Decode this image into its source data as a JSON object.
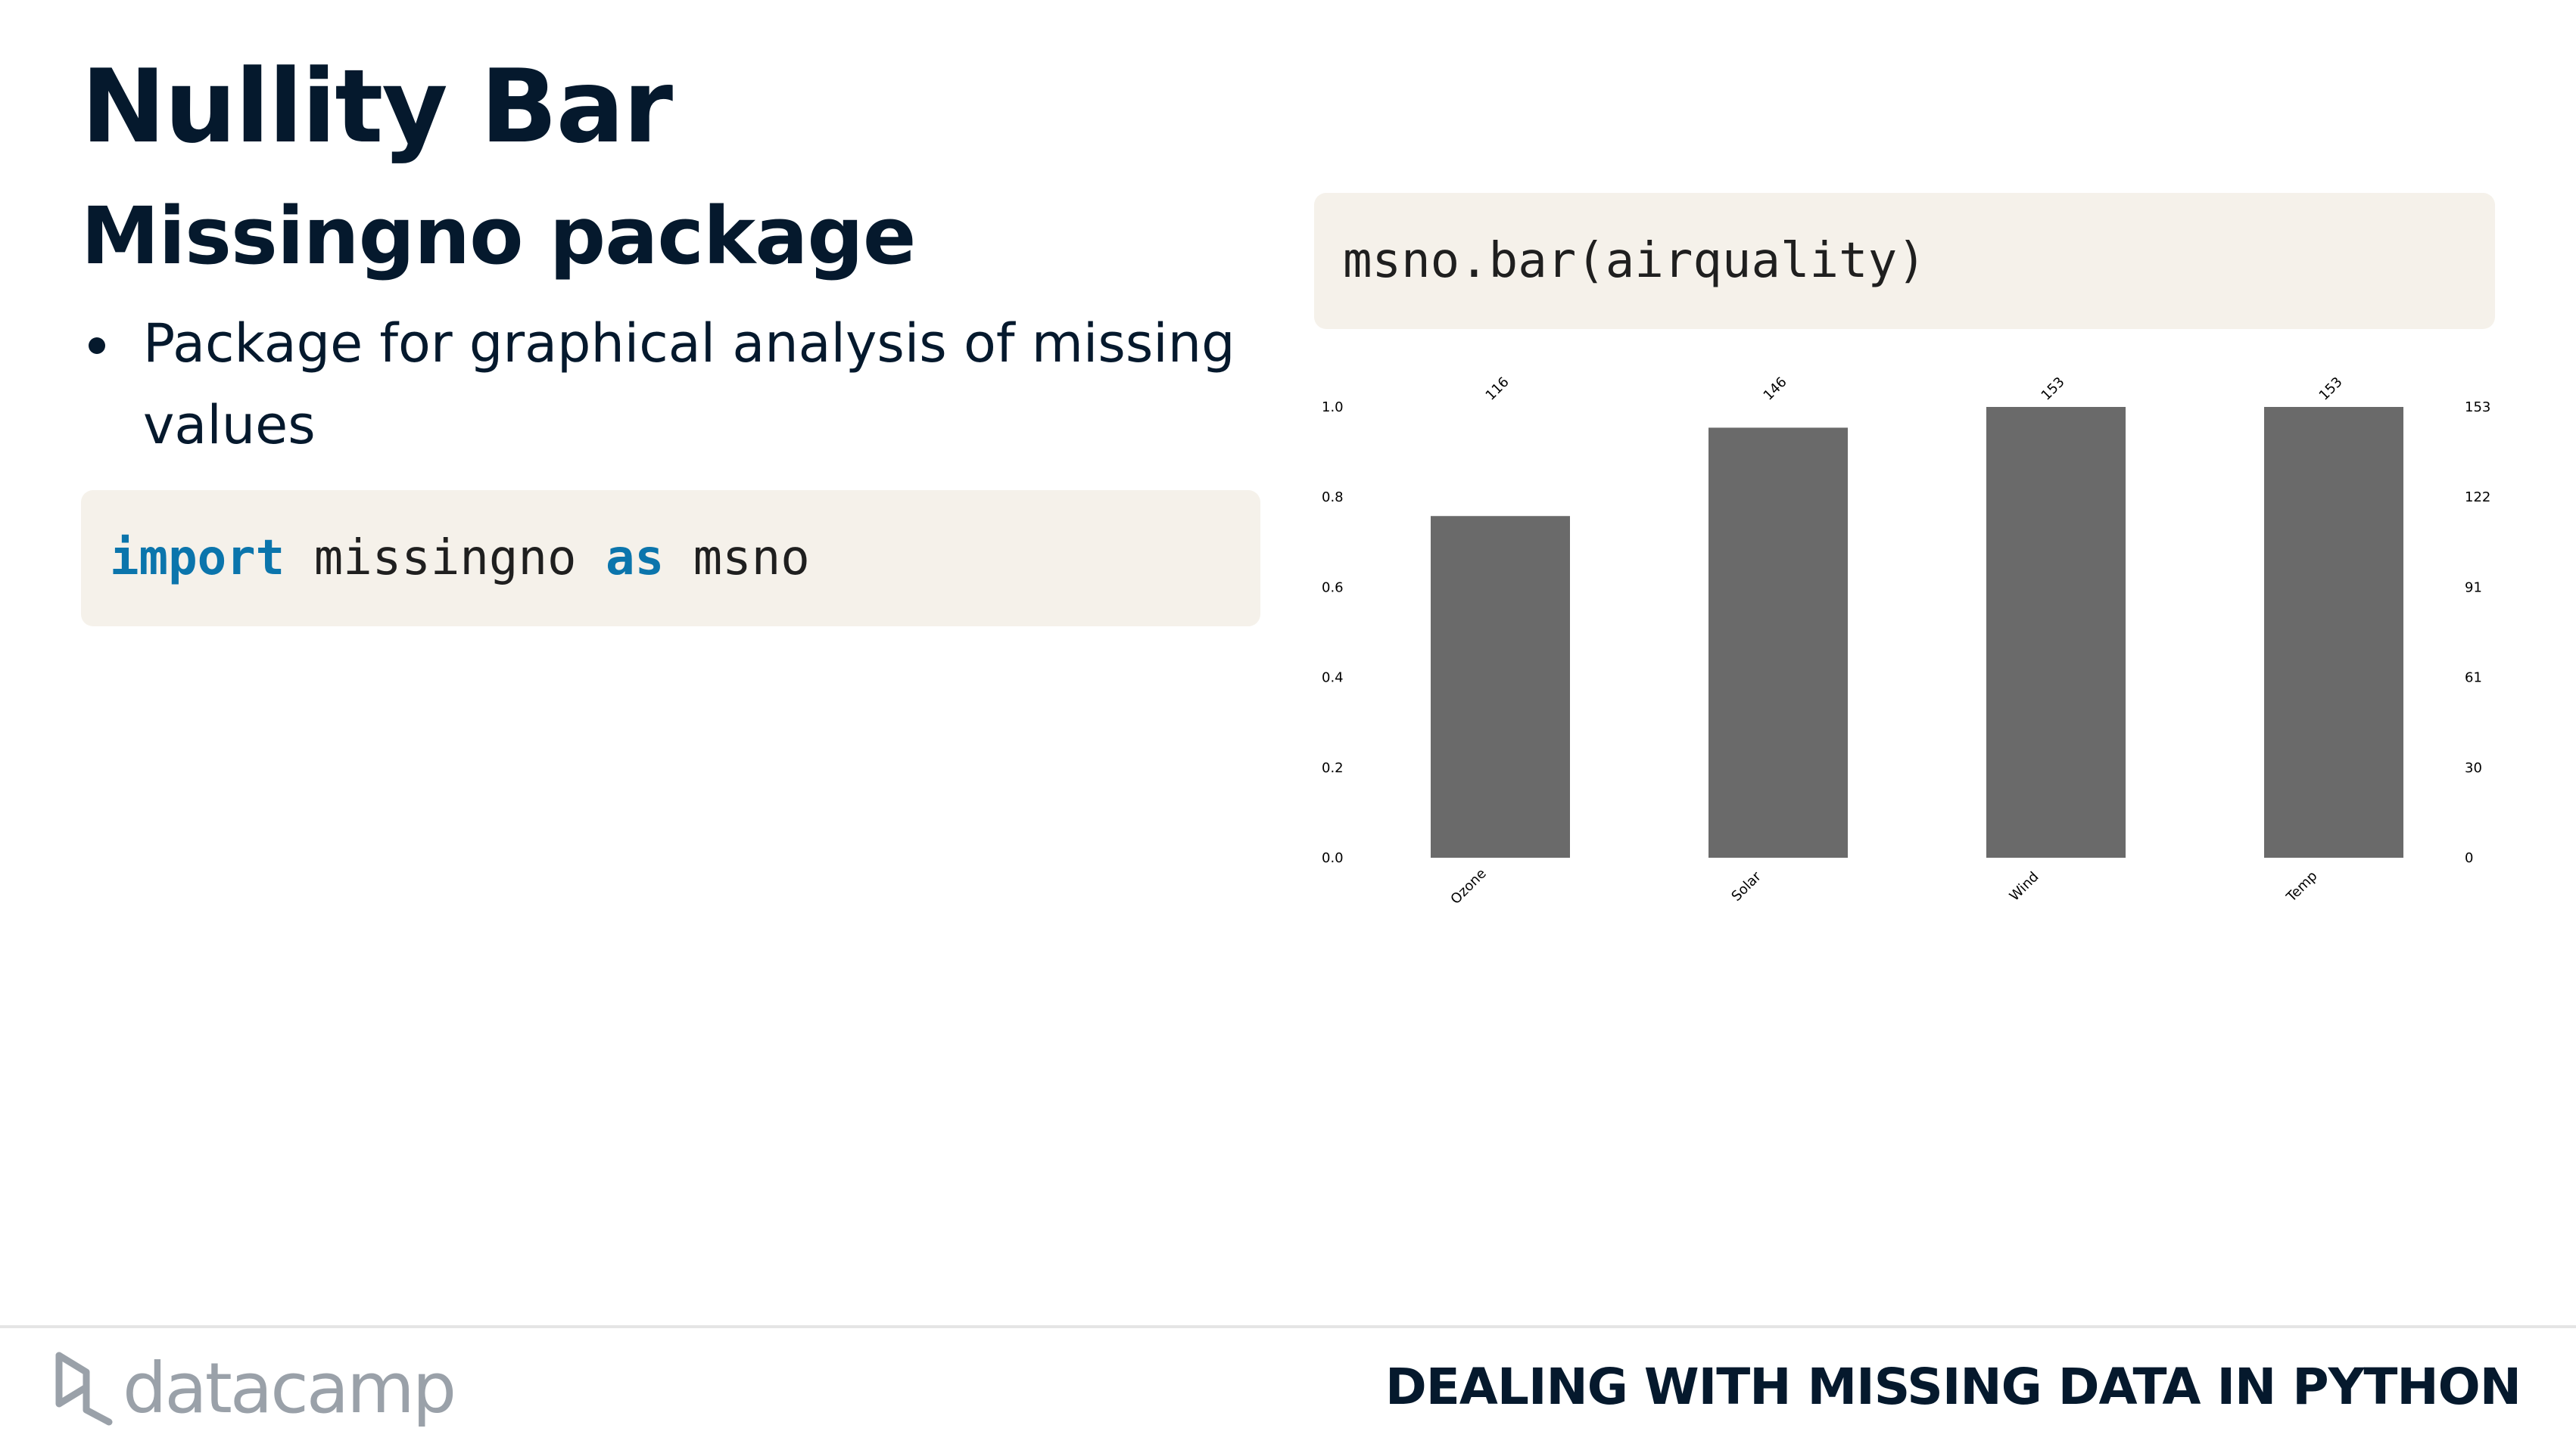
{
  "slide": {
    "title": "Nullity Bar",
    "subtitle": "Missingno package",
    "bullets": [
      "Package for graphical analysis of missing values"
    ]
  },
  "code_import": {
    "kw_import": "import",
    "module": " missingno ",
    "kw_as": "as",
    "alias": " msno"
  },
  "code_call": {
    "text": "msno.bar(airquality)"
  },
  "chart_data": {
    "type": "bar",
    "categories": [
      "Ozone",
      "Solar",
      "Wind",
      "Temp"
    ],
    "values": [
      0.758,
      0.954,
      1.0,
      1.0
    ],
    "counts": [
      116,
      146,
      153,
      153
    ],
    "ylim": [
      0,
      1
    ],
    "y_ticks_left": [
      "0.0",
      "0.2",
      "0.4",
      "0.6",
      "0.8",
      "1.0"
    ],
    "y_ticks_right": [
      "0",
      "30",
      "61",
      "91",
      "122",
      "153"
    ],
    "bar_color": "#6a6a6a",
    "grid": false
  },
  "footer": {
    "logo_text": "datacamp",
    "course_title": "DEALING WITH MISSING DATA IN PYTHON"
  },
  "colors": {
    "text": "#05192d",
    "code_background": "#f5f1ea",
    "keyword": "#0b75ac",
    "logo_gray": "#9aa1a9"
  }
}
